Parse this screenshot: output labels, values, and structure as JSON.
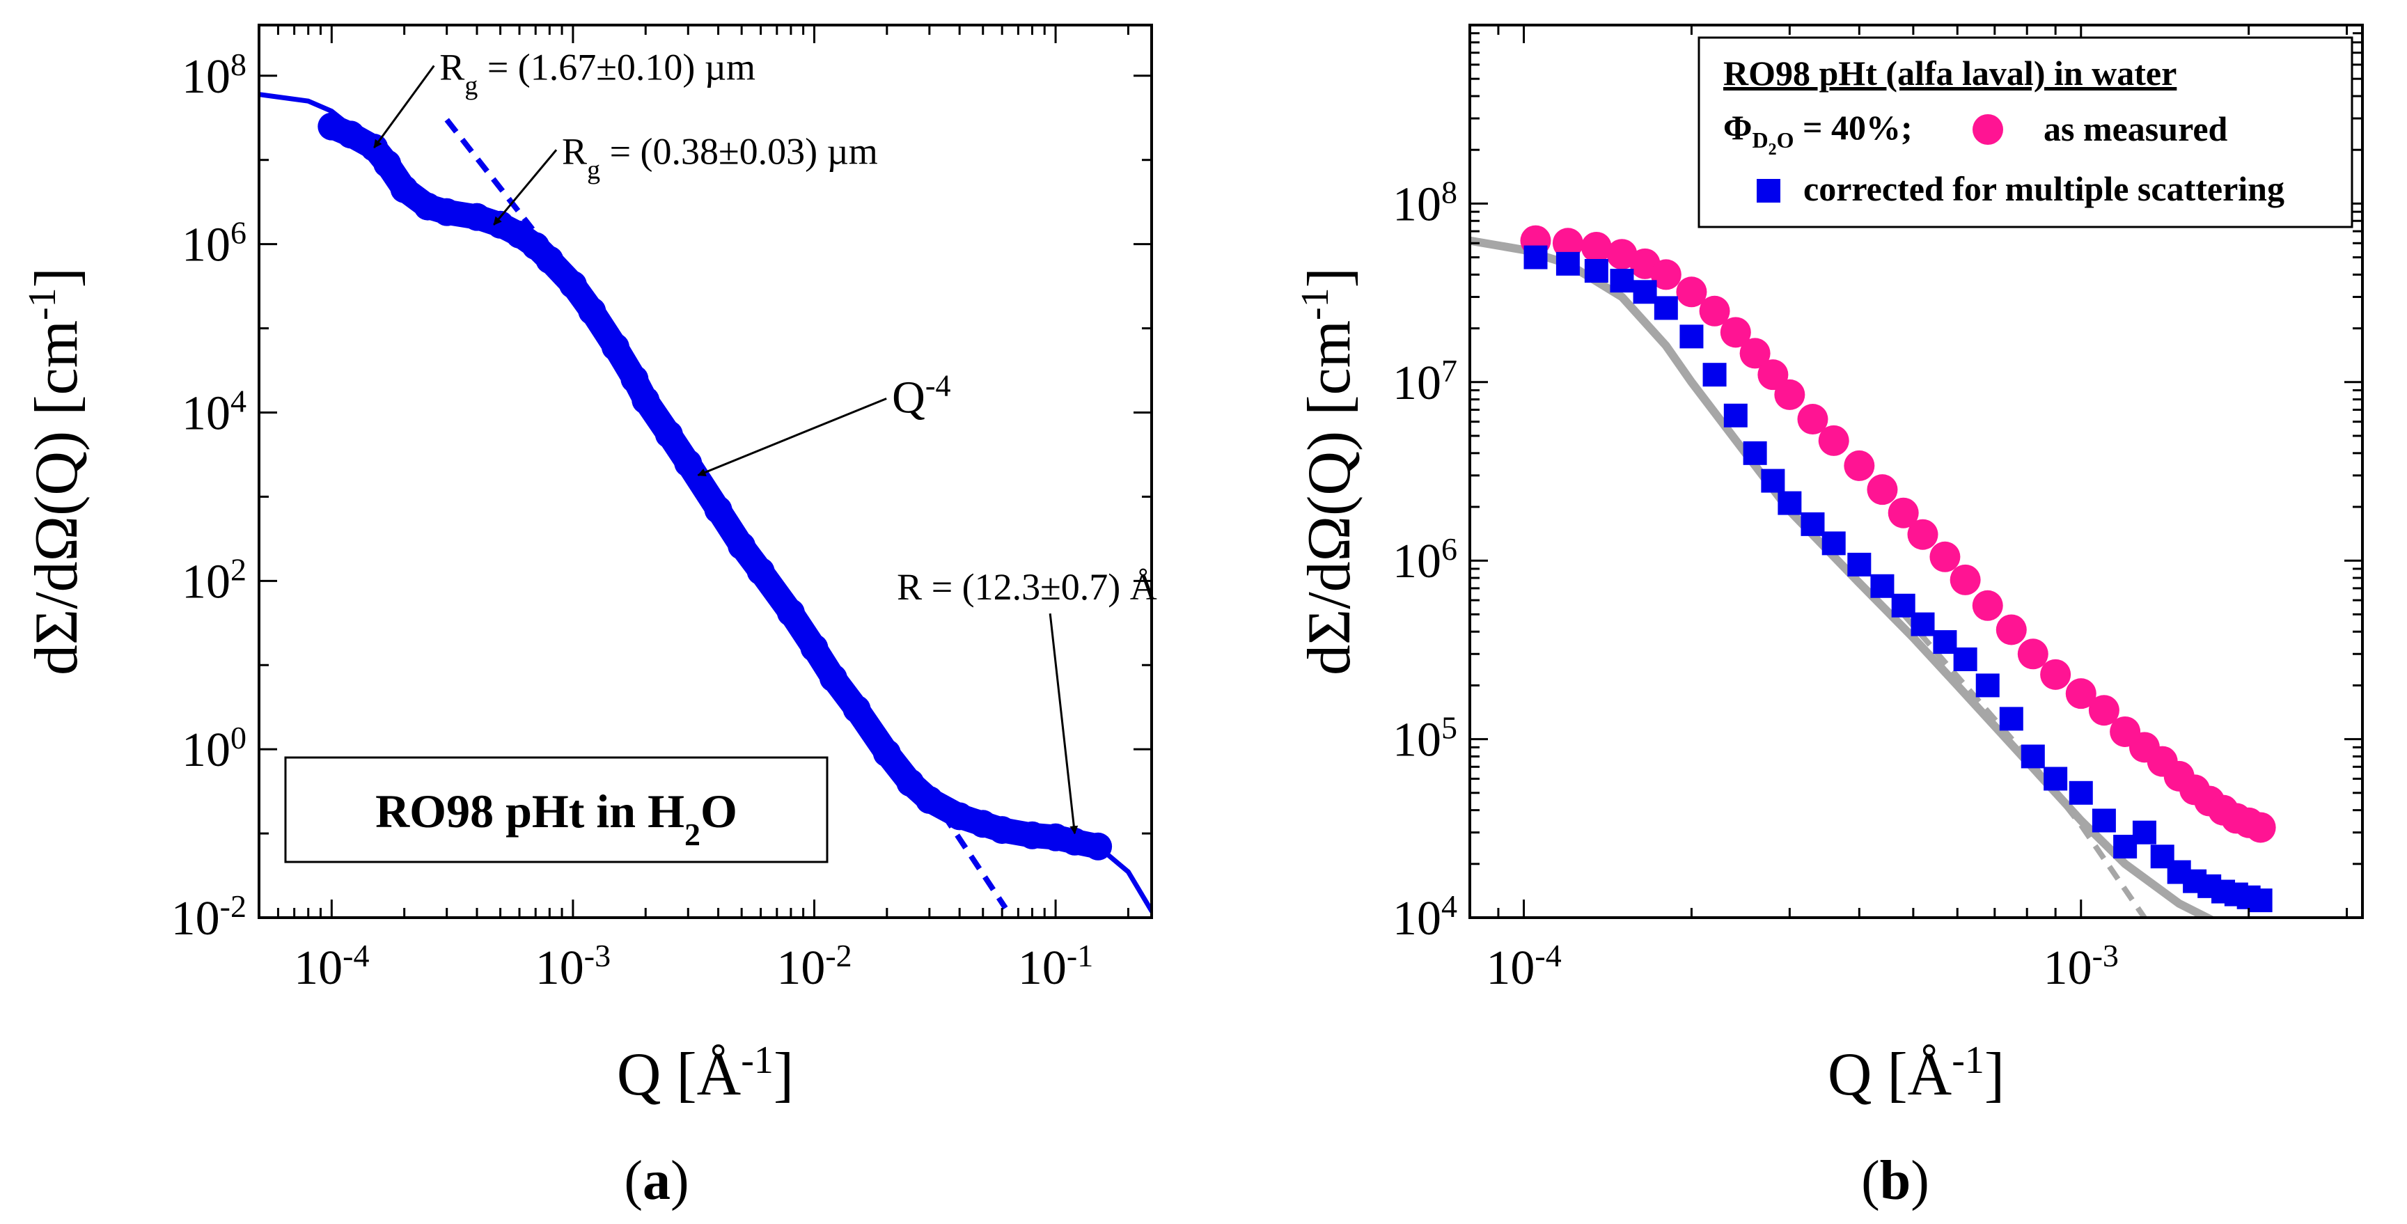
{
  "chart_data": [
    {
      "type": "scatter",
      "panel_label": "a",
      "xlabel": "Q [Å",
      "xlabel_sup": "-1",
      "xlabel_end": "]",
      "ylabel": "dΣ/dΩ(Q) [cm",
      "ylabel_sup": "-1",
      "ylabel_end": "]",
      "xscale": "log",
      "yscale": "log",
      "xlim": [
        5e-05,
        0.25
      ],
      "ylim": [
        0.01,
        400000000
      ],
      "x_tick_exponents": [
        -4,
        -3,
        -2,
        -1
      ],
      "y_tick_exponents": [
        -2,
        0,
        2,
        4,
        6,
        8
      ],
      "tick_base": "10",
      "grid": false,
      "legend": {
        "position": "bottom-left",
        "text": "RO98 pHt in H",
        "sub": "2",
        "text_end": "O"
      },
      "series": [
        {
          "role": "data",
          "color": "#0000ee",
          "points": [
            [
              0.0001,
              25000000
            ],
            [
              0.00012,
              20000000
            ],
            [
              0.00015,
              14000000
            ],
            [
              0.00017,
              9000000
            ],
            [
              0.0002,
              4500000
            ],
            [
              0.00025,
              2800000
            ],
            [
              0.0003,
              2400000
            ],
            [
              0.0004,
              2100000
            ],
            [
              0.0005,
              1700000
            ],
            [
              0.0006,
              1300000
            ],
            [
              0.0007,
              950000
            ],
            [
              0.0008,
              650000
            ],
            [
              0.001,
              330000
            ],
            [
              0.0012,
              160000
            ],
            [
              0.0015,
              60000
            ],
            [
              0.0018,
              25000
            ],
            [
              0.002,
              14000
            ],
            [
              0.0025,
              5500
            ],
            [
              0.003,
              2500
            ],
            [
              0.004,
              700
            ],
            [
              0.005,
              260
            ],
            [
              0.006,
              130
            ],
            [
              0.008,
              42
            ],
            [
              0.01,
              16
            ],
            [
              0.012,
              7
            ],
            [
              0.015,
              3
            ],
            [
              0.02,
              0.9
            ],
            [
              0.025,
              0.4
            ],
            [
              0.03,
              0.25
            ],
            [
              0.04,
              0.16
            ],
            [
              0.05,
              0.13
            ],
            [
              0.06,
              0.11
            ],
            [
              0.08,
              0.095
            ],
            [
              0.1,
              0.09
            ],
            [
              0.12,
              0.08
            ],
            [
              0.15,
              0.07
            ]
          ]
        },
        {
          "role": "fit",
          "color": "#0000ee",
          "points": [
            [
              5e-05,
              60000000
            ],
            [
              8e-05,
              50000000
            ],
            [
              0.0001,
              38000000
            ],
            [
              0.00015,
              15000000
            ],
            [
              0.0002,
              5000000
            ],
            [
              0.0003,
              2400000
            ],
            [
              0.0005,
              1600000
            ],
            [
              0.0008,
              600000
            ],
            [
              0.001,
              330000
            ],
            [
              0.002,
              14000
            ],
            [
              0.005,
              260
            ],
            [
              0.01,
              16
            ],
            [
              0.02,
              0.9
            ],
            [
              0.03,
              0.25
            ],
            [
              0.05,
              0.12
            ],
            [
              0.1,
              0.09
            ],
            [
              0.15,
              0.07
            ],
            [
              0.2,
              0.035
            ],
            [
              0.25,
              0.012
            ]
          ]
        },
        {
          "role": "dashed",
          "color": "#0000ee",
          "points": [
            [
              0.0003,
              30000000
            ],
            [
              0.00068,
              1500000
            ]
          ]
        },
        {
          "role": "dashed",
          "color": "#0000ee",
          "points": [
            [
              0.03,
              0.3
            ],
            [
              0.062,
              0.013
            ]
          ]
        }
      ],
      "annotations": [
        {
          "text": "R",
          "sub": "g",
          "rest": " = (1.67±0.10) µm",
          "label_at": [
            0.00028,
            90000000
          ],
          "arrow_to": [
            0.00015,
            14000000
          ]
        },
        {
          "text": "R",
          "sub": "g",
          "rest": " = (0.38±0.03) µm",
          "label_at": [
            0.0009,
            9000000
          ],
          "arrow_to": [
            0.00047,
            1700000
          ]
        },
        {
          "text": "Q",
          "sup": "-4",
          "rest": "",
          "label_at": [
            0.021,
            10000
          ],
          "arrow_to": [
            0.0033,
            1800
          ]
        },
        {
          "text": "R = (12.3±0.7) Å",
          "sub": "",
          "rest": "",
          "label_at": [
            0.022,
            60
          ],
          "arrow_to": [
            0.12,
            0.1
          ]
        }
      ]
    },
    {
      "type": "scatter",
      "panel_label": "b",
      "xlabel": "Q [Å",
      "xlabel_sup": "-1",
      "xlabel_end": "]",
      "ylabel": "dΣ/dΩ(Q) [cm",
      "ylabel_sup": "-1",
      "ylabel_end": "]",
      "xscale": "log",
      "yscale": "log",
      "xlim": [
        8e-05,
        0.0032
      ],
      "ylim": [
        10000,
        1000000000
      ],
      "x_tick_exponents": [
        -4,
        -3
      ],
      "y_tick_exponents": [
        4,
        5,
        6,
        7,
        8
      ],
      "tick_base": "10",
      "grid": false,
      "legend": {
        "position": "top-right",
        "title": "RO98 pHt (alfa laval) in water",
        "phi_label": "Φ",
        "phi_sub": "D",
        "phi_sub2": "2",
        "phi_sub3": "O",
        "phi_value": " = 40%;",
        "entries": [
          "as measured",
          "corrected for multiple scattering"
        ]
      },
      "series": [
        {
          "name": "as measured",
          "color": "#ff1493",
          "points": [
            [
              0.000105,
              62000000
            ],
            [
              0.00012,
              60000000
            ],
            [
              0.000135,
              57000000
            ],
            [
              0.00015,
              52000000
            ],
            [
              0.000165,
              46000000
            ],
            [
              0.00018,
              40000000
            ],
            [
              0.0002,
              32000000
            ],
            [
              0.00022,
              25000000
            ],
            [
              0.00024,
              19000000
            ],
            [
              0.00026,
              14500000
            ],
            [
              0.00028,
              11000000
            ],
            [
              0.0003,
              8500000
            ],
            [
              0.00033,
              6200000
            ],
            [
              0.00036,
              4700000
            ],
            [
              0.0004,
              3400000
            ],
            [
              0.00044,
              2500000
            ],
            [
              0.00048,
              1850000
            ],
            [
              0.00052,
              1400000
            ],
            [
              0.00057,
              1050000
            ],
            [
              0.00062,
              780000
            ],
            [
              0.00068,
              560000
            ],
            [
              0.00075,
              410000
            ],
            [
              0.00082,
              300000
            ],
            [
              0.0009,
              230000
            ],
            [
              0.001,
              180000
            ],
            [
              0.0011,
              145000
            ],
            [
              0.0012,
              110000
            ],
            [
              0.0013,
              90000
            ],
            [
              0.0014,
              75000
            ],
            [
              0.0015,
              62000
            ],
            [
              0.0016,
              52000
            ],
            [
              0.0017,
              45000
            ],
            [
              0.0018,
              40000
            ],
            [
              0.0019,
              36000
            ],
            [
              0.002,
              34000
            ],
            [
              0.0021,
              32000
            ]
          ]
        },
        {
          "name": "corrected for multiple scattering",
          "color": "#0000ee",
          "points": [
            [
              0.000105,
              50000000
            ],
            [
              0.00012,
              46000000
            ],
            [
              0.000135,
              42000000
            ],
            [
              0.00015,
              37000000
            ],
            [
              0.000165,
              32000000
            ],
            [
              0.00018,
              26000000
            ],
            [
              0.0002,
              18000000
            ],
            [
              0.00022,
              11000000
            ],
            [
              0.00024,
              6500000
            ],
            [
              0.00026,
              4000000
            ],
            [
              0.00028,
              2800000
            ],
            [
              0.0003,
              2100000
            ],
            [
              0.00033,
              1600000
            ],
            [
              0.00036,
              1250000
            ],
            [
              0.0004,
              950000
            ],
            [
              0.00044,
              720000
            ],
            [
              0.00048,
              560000
            ],
            [
              0.00052,
              440000
            ],
            [
              0.00057,
              350000
            ],
            [
              0.00062,
              280000
            ],
            [
              0.00068,
              200000
            ],
            [
              0.00075,
              130000
            ],
            [
              0.00082,
              80000
            ],
            [
              0.0009,
              60000
            ],
            [
              0.001,
              50000
            ],
            [
              0.0011,
              35000
            ],
            [
              0.0012,
              25000
            ],
            [
              0.0013,
              30000
            ],
            [
              0.0014,
              22000
            ],
            [
              0.0015,
              18000
            ],
            [
              0.0016,
              16000
            ],
            [
              0.0017,
              15000
            ],
            [
              0.0018,
              14000
            ],
            [
              0.0019,
              13500
            ],
            [
              0.002,
              13000
            ],
            [
              0.0021,
              12500
            ]
          ]
        },
        {
          "role": "fit",
          "color": "#a6a6a6",
          "points": [
            [
              8e-05,
              62000000
            ],
            [
              0.0001,
              55000000
            ],
            [
              0.00012,
              46000000
            ],
            [
              0.00015,
              30000000
            ],
            [
              0.00018,
              16000000
            ],
            [
              0.0002,
              10000000
            ],
            [
              0.00025,
              4000000
            ],
            [
              0.0003,
              1900000
            ],
            [
              0.0004,
              750000
            ],
            [
              0.0005,
              370000
            ],
            [
              0.0006,
              200000
            ],
            [
              0.0008,
              75000
            ],
            [
              0.001,
              35000
            ],
            [
              0.0012,
              20000
            ],
            [
              0.0015,
              12000
            ],
            [
              0.0018,
              9000
            ]
          ]
        },
        {
          "role": "dashed",
          "color": "#a6a6a6",
          "points": [
            [
              0.00048,
              500000
            ],
            [
              0.0008,
              80000
            ],
            [
              0.001,
              33000
            ],
            [
              0.0013,
              10000
            ]
          ]
        }
      ]
    }
  ]
}
